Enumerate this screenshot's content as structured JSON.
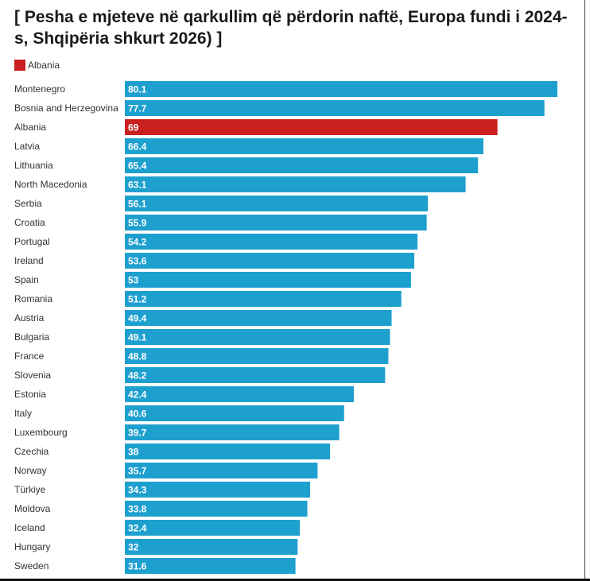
{
  "chart_data": {
    "type": "bar",
    "orientation": "horizontal",
    "title": "[ Pesha e mjeteve në qarkullim që përdorin naftë, Europa fundi i 2024-s, Shqipëria shkurt 2026) ]",
    "legend": [
      {
        "name": "Albania",
        "color": "#c9201f"
      }
    ],
    "legend_position": "top-left",
    "grid": false,
    "xlim": [
      0,
      80.1
    ],
    "colors": {
      "default": "#1ea0cf",
      "highlight": "#c9201f"
    },
    "highlight": "Albania",
    "categories": [
      "Montenegro",
      "Bosnia and Herzegovina",
      "Albania",
      "Latvia",
      "Lithuania",
      "North Macedonia",
      "Serbia",
      "Croatia",
      "Portugal",
      "Ireland",
      "Spain",
      "Romania",
      "Austria",
      "Bulgaria",
      "France",
      "Slovenia",
      "Estonia",
      "Italy",
      "Luxembourg",
      "Czechia",
      "Norway",
      "Türkiye",
      "Moldova",
      "Iceland",
      "Hungary",
      "Sweden"
    ],
    "values": [
      80.1,
      77.7,
      69,
      66.4,
      65.4,
      63.1,
      56.1,
      55.9,
      54.2,
      53.6,
      53,
      51.2,
      49.4,
      49.1,
      48.8,
      48.2,
      42.4,
      40.6,
      39.7,
      38,
      35.7,
      34.3,
      33.8,
      32.4,
      32,
      31.6
    ],
    "value_labels": [
      "80.1",
      "77.7",
      "69",
      "66.4",
      "65.4",
      "63.1",
      "56.1",
      "55.9",
      "54.2",
      "53.6",
      "53",
      "51.2",
      "49.4",
      "49.1",
      "48.8",
      "48.2",
      "42.4",
      "40.6",
      "39.7",
      "38",
      "35.7",
      "34.3",
      "33.8",
      "32.4",
      "32",
      "31.6"
    ]
  }
}
